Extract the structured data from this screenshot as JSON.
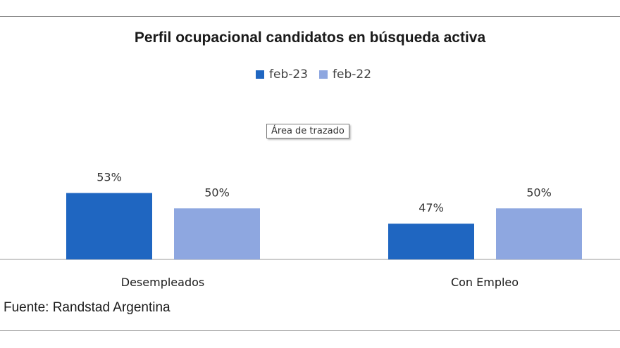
{
  "chart_data": {
    "type": "bar",
    "title": "Perfil ocupacional candidatos en búsqueda activa",
    "categories": [
      "Desempleados",
      "Con Empleo"
    ],
    "series": [
      {
        "name": "feb-23",
        "color": "#1f66c1",
        "values": [
          53,
          47
        ],
        "labels": [
          "53%",
          "47%"
        ]
      },
      {
        "name": "feb-22",
        "color": "#8ea7e0",
        "values": [
          50,
          50
        ],
        "labels": [
          "50%",
          "50%"
        ]
      }
    ],
    "ylim": [
      40,
      55
    ],
    "grid": false,
    "legend_position": "top"
  },
  "tooltip": {
    "text": "Área de trazado"
  },
  "source": "Fuente: Randstad Argentina"
}
